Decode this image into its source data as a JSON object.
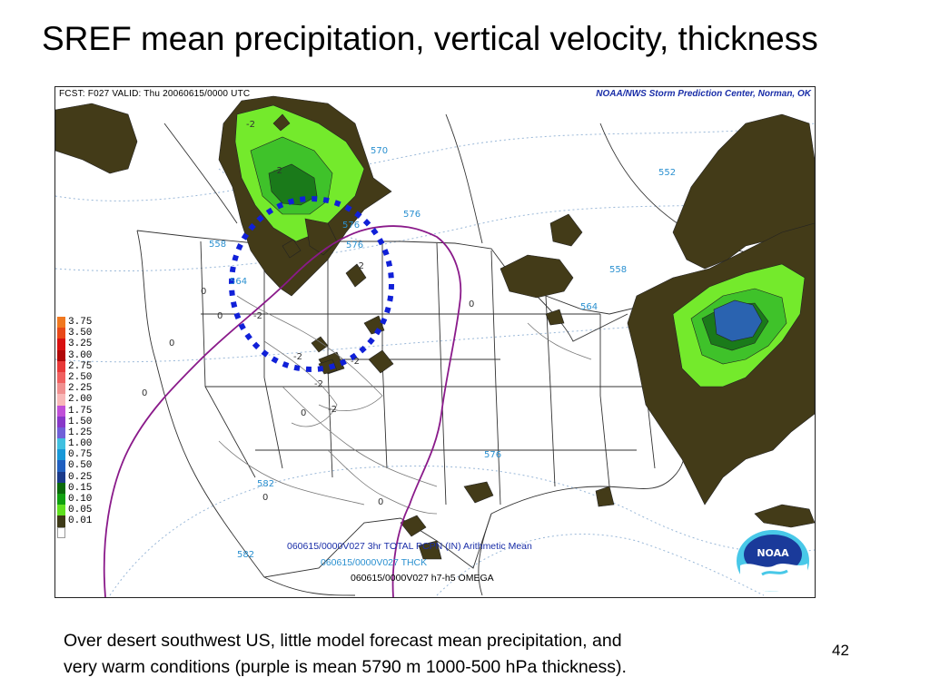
{
  "slide": {
    "title": "SREF mean precipitation, vertical velocity, thickness",
    "caption_line1": "Over desert southwest US, little model forecast mean precipitation, and",
    "caption_line2": "very warm conditions (purple is mean 5790 m 1000-500 hPa thickness).",
    "page_number": "42"
  },
  "map": {
    "header_left": "FCST: F027  VALID: Thu  20060615/0000 UTC",
    "header_right": "NOAA/NWS Storm Prediction Center, Norman, OK",
    "caption_precip": "060615/0000V027 3hr TOTAL PCPN (IN) Arithmetic Mean",
    "caption_thck": "060615/0000V027 THCK",
    "caption_omega": "060615/0000V027 h7-h5 OMEGA",
    "logo_text": "NOAA",
    "thickness_labels": [
      "570",
      "576",
      "552",
      "558",
      "558",
      "576",
      "564",
      "564",
      "576",
      "582",
      "582",
      "576"
    ],
    "omega_labels": [
      "-2",
      "-2",
      "-2",
      "-2",
      "-2",
      "-2",
      "-2",
      "-2",
      "0",
      "0",
      "0",
      "0",
      "0",
      "0",
      "0",
      "0"
    ],
    "legend_title": "3hr TOTAL PCPN (IN)",
    "legend": [
      {
        "value": "3.75",
        "color": "#f07820"
      },
      {
        "value": "3.50",
        "color": "#e84818"
      },
      {
        "value": "3.25",
        "color": "#d81010"
      },
      {
        "value": "3.00",
        "color": "#b00808"
      },
      {
        "value": "2.75",
        "color": "#e83838"
      },
      {
        "value": "2.50",
        "color": "#f06060"
      },
      {
        "value": "2.25",
        "color": "#f09090"
      },
      {
        "value": "2.00",
        "color": "#f8b8b8"
      },
      {
        "value": "1.75",
        "color": "#c050d8"
      },
      {
        "value": "1.50",
        "color": "#8838c8"
      },
      {
        "value": "1.25",
        "color": "#7060d8"
      },
      {
        "value": "1.00",
        "color": "#40c0e0"
      },
      {
        "value": "0.75",
        "color": "#1898d8"
      },
      {
        "value": "0.50",
        "color": "#2060c0"
      },
      {
        "value": "0.25",
        "color": "#1a3a8a"
      },
      {
        "value": "0.15",
        "color": "#0a6a0a"
      },
      {
        "value": "0.10",
        "color": "#10a010"
      },
      {
        "value": "0.05",
        "color": "#60e020"
      },
      {
        "value": "0.01",
        "color": "#3d3a18"
      }
    ],
    "colors": {
      "light_precip": "#433b18",
      "medium_green": "#3fc22a",
      "bright_green": "#74ea2c",
      "dark_green": "#1a7a1a",
      "heavy_blue": "#2a63b0",
      "thickness_purple": "#8a1a8a",
      "annotation_blue": "#1020d8",
      "omega_contour": "#777777",
      "thickness_label_blue": "#2a90d0"
    }
  }
}
